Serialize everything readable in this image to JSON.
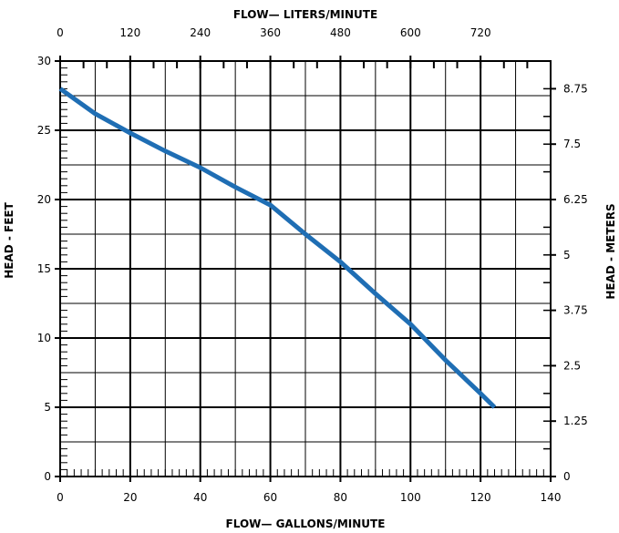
{
  "chart_data": {
    "type": "line",
    "xlabel_bottom": "FLOW— GALLONS/MINUTE",
    "xlabel_top": "FLOW— LITERS/MINUTE",
    "ylabel_left": "HEAD - FEET",
    "ylabel_right": "HEAD - METERS",
    "xlim": [
      0,
      140
    ],
    "ylim": [
      0,
      30
    ],
    "grid": true,
    "line_color": "#1f6eb4",
    "bottom_ticks": [
      {
        "value": 0,
        "label": "0"
      },
      {
        "value": 20,
        "label": "20"
      },
      {
        "value": 40,
        "label": "40"
      },
      {
        "value": 60,
        "label": "60"
      },
      {
        "value": 80,
        "label": "80"
      },
      {
        "value": 100,
        "label": "100"
      },
      {
        "value": 120,
        "label": "120"
      },
      {
        "value": 140,
        "label": "140"
      }
    ],
    "top_ticks": [
      {
        "value": 0,
        "label": "0"
      },
      {
        "value": 120,
        "label": "120"
      },
      {
        "value": 240,
        "label": "240"
      },
      {
        "value": 360,
        "label": "360"
      },
      {
        "value": 480,
        "label": "480"
      },
      {
        "value": 600,
        "label": "600"
      },
      {
        "value": 720,
        "label": "720"
      }
    ],
    "left_ticks": [
      {
        "value": 0,
        "label": "0"
      },
      {
        "value": 5,
        "label": "5"
      },
      {
        "value": 10,
        "label": "10"
      },
      {
        "value": 15,
        "label": "15"
      },
      {
        "value": 20,
        "label": "20"
      },
      {
        "value": 25,
        "label": "25"
      },
      {
        "value": 30,
        "label": "30"
      }
    ],
    "right_ticks": [
      {
        "value": 0,
        "label": "0"
      },
      {
        "value": 1.25,
        "label": "1.25"
      },
      {
        "value": 2.5,
        "label": "2.5"
      },
      {
        "value": 3.75,
        "label": "3.75"
      },
      {
        "value": 5,
        "label": "5"
      },
      {
        "value": 6.25,
        "label": "6.25"
      },
      {
        "value": 7.5,
        "label": "7.5"
      },
      {
        "value": 8.75,
        "label": "8.75"
      }
    ],
    "series": [
      {
        "x": [
          0,
          10,
          20,
          30,
          40,
          50,
          60,
          70,
          80,
          90,
          100,
          110,
          120,
          124
        ],
        "y": [
          28,
          26.2,
          24.8,
          23.5,
          22.3,
          20.9,
          19.6,
          17.5,
          15.5,
          13.2,
          11,
          8.4,
          6,
          5
        ]
      }
    ]
  }
}
